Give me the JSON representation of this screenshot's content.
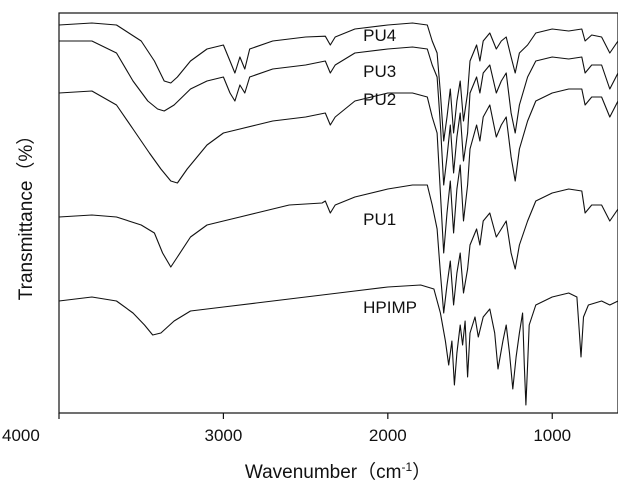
{
  "chart_data": {
    "type": "line",
    "title": "",
    "xlabel": "Wavenumber（cm",
    "xlabel_sup": "-1",
    "xlabel_close": "）",
    "ylabel": "Transmittance（%）",
    "xlim": [
      4000,
      600
    ],
    "ylim": [
      0,
      100
    ],
    "x_reversed": true,
    "y_tick_labels": false,
    "grid": false,
    "legend": "none",
    "xticks": [
      {
        "value": 4000,
        "label": "4000"
      },
      {
        "value": 3000,
        "label": "3000"
      },
      {
        "value": 2000,
        "label": "2000"
      },
      {
        "value": 1000,
        "label": "1000"
      }
    ],
    "series": [
      {
        "name": "PU4",
        "label_at": [
          2150,
          93
        ],
        "points": [
          [
            4000,
            97
          ],
          [
            3800,
            97.5
          ],
          [
            3650,
            97
          ],
          [
            3500,
            93
          ],
          [
            3420,
            88
          ],
          [
            3360,
            83
          ],
          [
            3320,
            82.5
          ],
          [
            3280,
            84
          ],
          [
            3200,
            88
          ],
          [
            3100,
            91
          ],
          [
            3000,
            92
          ],
          [
            2960,
            88
          ],
          [
            2930,
            85
          ],
          [
            2900,
            89
          ],
          [
            2870,
            86
          ],
          [
            2840,
            91
          ],
          [
            2700,
            93
          ],
          [
            2500,
            94
          ],
          [
            2380,
            94.2
          ],
          [
            2350,
            92
          ],
          [
            2320,
            94
          ],
          [
            2200,
            96
          ],
          [
            2000,
            97
          ],
          [
            1850,
            97.5
          ],
          [
            1760,
            97
          ],
          [
            1730,
            93
          ],
          [
            1700,
            90
          ],
          [
            1680,
            80
          ],
          [
            1660,
            68
          ],
          [
            1640,
            74
          ],
          [
            1620,
            81
          ],
          [
            1600,
            70
          ],
          [
            1580,
            78
          ],
          [
            1560,
            83
          ],
          [
            1540,
            73
          ],
          [
            1515,
            80
          ],
          [
            1500,
            88
          ],
          [
            1460,
            92
          ],
          [
            1440,
            88
          ],
          [
            1420,
            93
          ],
          [
            1380,
            95
          ],
          [
            1340,
            91
          ],
          [
            1310,
            93
          ],
          [
            1280,
            94
          ],
          [
            1250,
            89
          ],
          [
            1225,
            85
          ],
          [
            1200,
            90
          ],
          [
            1150,
            92
          ],
          [
            1100,
            95
          ],
          [
            1000,
            96
          ],
          [
            900,
            95.5
          ],
          [
            820,
            96
          ],
          [
            800,
            93
          ],
          [
            760,
            94.5
          ],
          [
            700,
            94
          ],
          [
            650,
            90
          ],
          [
            600,
            93
          ]
        ]
      },
      {
        "name": "PU3",
        "label_at": [
          2150,
          84
        ],
        "points": [
          [
            4000,
            93
          ],
          [
            3800,
            93
          ],
          [
            3650,
            90
          ],
          [
            3550,
            83
          ],
          [
            3460,
            78
          ],
          [
            3400,
            76
          ],
          [
            3360,
            75.5
          ],
          [
            3300,
            77
          ],
          [
            3200,
            81
          ],
          [
            3100,
            83
          ],
          [
            3000,
            84
          ],
          [
            2960,
            80
          ],
          [
            2930,
            78
          ],
          [
            2900,
            82
          ],
          [
            2870,
            80
          ],
          [
            2840,
            84
          ],
          [
            2700,
            86
          ],
          [
            2500,
            87
          ],
          [
            2380,
            88
          ],
          [
            2350,
            85
          ],
          [
            2320,
            87
          ],
          [
            2200,
            90
          ],
          [
            2000,
            91
          ],
          [
            1850,
            91.5
          ],
          [
            1760,
            91
          ],
          [
            1730,
            87
          ],
          [
            1700,
            84
          ],
          [
            1680,
            72
          ],
          [
            1660,
            57
          ],
          [
            1640,
            64
          ],
          [
            1620,
            72
          ],
          [
            1600,
            60
          ],
          [
            1580,
            69
          ],
          [
            1560,
            75
          ],
          [
            1540,
            63
          ],
          [
            1515,
            70
          ],
          [
            1500,
            80
          ],
          [
            1460,
            84
          ],
          [
            1440,
            80
          ],
          [
            1420,
            85
          ],
          [
            1380,
            87
          ],
          [
            1340,
            80
          ],
          [
            1310,
            83
          ],
          [
            1280,
            85
          ],
          [
            1250,
            75
          ],
          [
            1225,
            70
          ],
          [
            1200,
            77
          ],
          [
            1150,
            84
          ],
          [
            1100,
            88
          ],
          [
            1000,
            89
          ],
          [
            900,
            88.5
          ],
          [
            820,
            89
          ],
          [
            800,
            85
          ],
          [
            760,
            87
          ],
          [
            700,
            87
          ],
          [
            650,
            81
          ],
          [
            600,
            85
          ]
        ]
      },
      {
        "name": "PU2",
        "label_at": [
          2150,
          77
        ],
        "points": [
          [
            4000,
            80
          ],
          [
            3800,
            80.5
          ],
          [
            3650,
            77
          ],
          [
            3550,
            71
          ],
          [
            3450,
            65
          ],
          [
            3380,
            61
          ],
          [
            3320,
            58
          ],
          [
            3280,
            57.5
          ],
          [
            3220,
            61
          ],
          [
            3100,
            67
          ],
          [
            3000,
            70
          ],
          [
            2900,
            71
          ],
          [
            2800,
            72
          ],
          [
            2700,
            73
          ],
          [
            2500,
            74
          ],
          [
            2380,
            75
          ],
          [
            2350,
            72
          ],
          [
            2320,
            74
          ],
          [
            2200,
            78
          ],
          [
            2000,
            80
          ],
          [
            1850,
            80
          ],
          [
            1760,
            79
          ],
          [
            1730,
            74
          ],
          [
            1700,
            70
          ],
          [
            1680,
            55
          ],
          [
            1660,
            40
          ],
          [
            1640,
            50
          ],
          [
            1620,
            58
          ],
          [
            1600,
            45
          ],
          [
            1580,
            56
          ],
          [
            1560,
            62
          ],
          [
            1540,
            48
          ],
          [
            1515,
            57
          ],
          [
            1500,
            66
          ],
          [
            1460,
            72
          ],
          [
            1440,
            68
          ],
          [
            1420,
            74
          ],
          [
            1380,
            77
          ],
          [
            1340,
            69
          ],
          [
            1310,
            72
          ],
          [
            1280,
            74
          ],
          [
            1250,
            64
          ],
          [
            1225,
            58
          ],
          [
            1200,
            66
          ],
          [
            1150,
            73
          ],
          [
            1100,
            78
          ],
          [
            1000,
            80
          ],
          [
            900,
            81
          ],
          [
            820,
            81
          ],
          [
            800,
            77
          ],
          [
            760,
            79
          ],
          [
            700,
            79
          ],
          [
            650,
            74
          ],
          [
            600,
            78
          ]
        ]
      },
      {
        "name": "PU1",
        "label_at": [
          2150,
          47
        ],
        "points": [
          [
            4000,
            49
          ],
          [
            3800,
            49.5
          ],
          [
            3650,
            49
          ],
          [
            3500,
            47
          ],
          [
            3420,
            45
          ],
          [
            3370,
            40
          ],
          [
            3320,
            36.5
          ],
          [
            3280,
            39
          ],
          [
            3200,
            44
          ],
          [
            3100,
            47
          ],
          [
            3000,
            48
          ],
          [
            2900,
            49
          ],
          [
            2800,
            50
          ],
          [
            2600,
            52
          ],
          [
            2400,
            52.5
          ],
          [
            2380,
            53
          ],
          [
            2350,
            50
          ],
          [
            2320,
            52
          ],
          [
            2200,
            54
          ],
          [
            2000,
            56
          ],
          [
            1850,
            57
          ],
          [
            1760,
            57
          ],
          [
            1730,
            52
          ],
          [
            1700,
            46
          ],
          [
            1680,
            35
          ],
          [
            1660,
            25
          ],
          [
            1640,
            32
          ],
          [
            1620,
            38
          ],
          [
            1600,
            27
          ],
          [
            1580,
            35
          ],
          [
            1560,
            40
          ],
          [
            1540,
            30
          ],
          [
            1515,
            36
          ],
          [
            1500,
            42
          ],
          [
            1460,
            46
          ],
          [
            1440,
            42
          ],
          [
            1420,
            48
          ],
          [
            1380,
            50
          ],
          [
            1340,
            44
          ],
          [
            1310,
            46
          ],
          [
            1280,
            48
          ],
          [
            1250,
            40
          ],
          [
            1225,
            36
          ],
          [
            1200,
            42
          ],
          [
            1150,
            48
          ],
          [
            1100,
            53
          ],
          [
            1000,
            55
          ],
          [
            900,
            56
          ],
          [
            820,
            55.5
          ],
          [
            800,
            50
          ],
          [
            760,
            52
          ],
          [
            700,
            52
          ],
          [
            650,
            48
          ],
          [
            600,
            51
          ]
        ]
      },
      {
        "name": "HPIMP",
        "label_at": [
          2150,
          25
        ],
        "points": [
          [
            4000,
            28
          ],
          [
            3800,
            29
          ],
          [
            3650,
            28
          ],
          [
            3550,
            25
          ],
          [
            3480,
            22
          ],
          [
            3430,
            19.5
          ],
          [
            3380,
            20
          ],
          [
            3300,
            23
          ],
          [
            3200,
            25.5
          ],
          [
            3100,
            26
          ],
          [
            3000,
            26.5
          ],
          [
            2800,
            27.5
          ],
          [
            2600,
            28.5
          ],
          [
            2400,
            29.5
          ],
          [
            2200,
            30.5
          ],
          [
            2000,
            31.5
          ],
          [
            1800,
            32
          ],
          [
            1720,
            31
          ],
          [
            1680,
            25
          ],
          [
            1650,
            18
          ],
          [
            1630,
            12
          ],
          [
            1610,
            18
          ],
          [
            1595,
            7
          ],
          [
            1580,
            15
          ],
          [
            1560,
            22
          ],
          [
            1545,
            17
          ],
          [
            1530,
            23
          ],
          [
            1515,
            9
          ],
          [
            1500,
            20
          ],
          [
            1470,
            24
          ],
          [
            1450,
            19
          ],
          [
            1420,
            24
          ],
          [
            1380,
            26
          ],
          [
            1350,
            20
          ],
          [
            1330,
            11
          ],
          [
            1300,
            18
          ],
          [
            1280,
            22
          ],
          [
            1260,
            15
          ],
          [
            1240,
            6
          ],
          [
            1220,
            14
          ],
          [
            1200,
            20
          ],
          [
            1180,
            25
          ],
          [
            1170,
            12
          ],
          [
            1160,
            2
          ],
          [
            1150,
            12
          ],
          [
            1140,
            22
          ],
          [
            1100,
            27
          ],
          [
            1000,
            29
          ],
          [
            900,
            30
          ],
          [
            850,
            29
          ],
          [
            835,
            20
          ],
          [
            825,
            14
          ],
          [
            810,
            24
          ],
          [
            780,
            27
          ],
          [
            700,
            28
          ],
          [
            650,
            27
          ],
          [
            600,
            28
          ]
        ]
      }
    ]
  }
}
